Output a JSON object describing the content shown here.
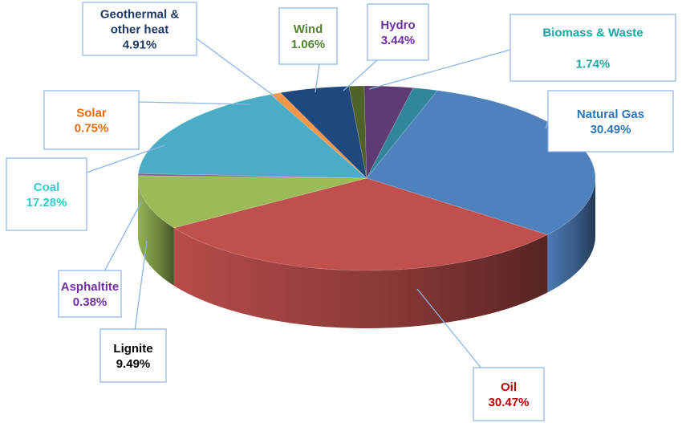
{
  "chart_data": {
    "type": "pie",
    "title": "",
    "three_d": true,
    "slices": [
      {
        "label": "Natural Gas",
        "value": 30.49,
        "display": "30.49%",
        "color": "#4f81bd",
        "label_color": "#2e75b6"
      },
      {
        "label": "Oil",
        "value": 30.47,
        "display": "30.47%",
        "color": "#c0504d",
        "label_color": "#c00000"
      },
      {
        "label": "Lignite",
        "value": 9.49,
        "display": "9.49%",
        "color": "#9bbb59",
        "label_color": "#000000"
      },
      {
        "label": "Asphaltite",
        "value": 0.38,
        "display": "0.38%",
        "color": "#8064a2",
        "label_color": "#7030a0"
      },
      {
        "label": "Coal",
        "value": 17.28,
        "display": "17.28%",
        "color": "#4bacc6",
        "label_color": "#33cccc"
      },
      {
        "label": "Solar",
        "value": 0.75,
        "display": "0.75%",
        "color": "#f79646",
        "label_color": "#e46c0a"
      },
      {
        "label": "Geothermal & other heat",
        "label_lines": [
          "Geothermal &",
          "other heat"
        ],
        "value": 4.91,
        "display": "4.91%",
        "color": "#1f497d",
        "label_color": "#1f3864"
      },
      {
        "label": "Wind",
        "value": 1.06,
        "display": "1.06%",
        "color": "#4f6228",
        "label_color": "#548235"
      },
      {
        "label": "Hydro",
        "value": 3.44,
        "display": "3.44%",
        "color": "#5f3b73",
        "label_color": "#7030a0"
      },
      {
        "label": "Biomass & Waste",
        "value": 1.74,
        "display": "1.74%",
        "color": "#31859c",
        "label_color": "#1fa3a3"
      }
    ]
  }
}
